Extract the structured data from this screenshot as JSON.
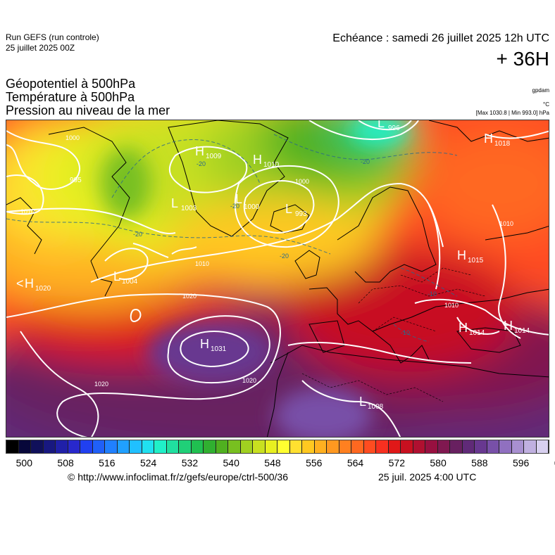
{
  "header": {
    "run_label": "Run GEFS (run controle)",
    "run_date": "25 juillet 2025 00Z",
    "echeance": "Echéance : samedi 26 juillet 2025 12h UTC",
    "lead_time": "+ 36H"
  },
  "layers": {
    "geopotential": "Géopotentiel à 500hPa",
    "temperature": "Température à 500hPa",
    "pressure": "Pression au niveau de la mer"
  },
  "units": {
    "geopotential": "gpdam",
    "temperature": "°C",
    "pressure": "[Max 1030.8 | Min 993.0] hPa"
  },
  "map": {
    "pressure_systems": [
      {
        "type": "H",
        "value": "1009",
        "region": "south-greenland"
      },
      {
        "type": "H",
        "value": "1010",
        "region": "greenland-sea"
      },
      {
        "type": "H",
        "value": "1018",
        "region": "barents-sea"
      },
      {
        "type": "L",
        "value": "1003",
        "region": "davis-strait"
      },
      {
        "type": "L",
        "value": "1000",
        "region": "north-iceland"
      },
      {
        "type": "L",
        "value": "993",
        "region": "iceland"
      },
      {
        "type": "L",
        "value": "996",
        "region": "spitsbergen"
      },
      {
        "type": "L",
        "value": "995",
        "region": "canada-north"
      },
      {
        "type": "H",
        "value": "1015",
        "region": "russia-west"
      },
      {
        "type": "H",
        "value": "1020",
        "region": "north-america-east"
      },
      {
        "type": "L",
        "value": "1004",
        "region": "newfoundland"
      },
      {
        "type": "H",
        "value": "1031",
        "region": "azores"
      },
      {
        "type": "H",
        "value": "1014",
        "region": "balkans"
      },
      {
        "type": "H",
        "value": "1014",
        "region": "black-sea"
      },
      {
        "type": "L",
        "value": "1008",
        "region": "sahara"
      }
    ],
    "isobar_labels": [
      "1000",
      "1010",
      "1020",
      "1020",
      "1020",
      "1000",
      "1010",
      "1010",
      "1010"
    ],
    "temperature_labels": [
      "-20",
      "-20",
      "-20",
      "-20",
      "-20",
      "-10",
      "-10"
    ]
  },
  "colorbar": {
    "colors": [
      "#000000",
      "#07073a",
      "#10105a",
      "#181880",
      "#2020a8",
      "#2828cc",
      "#2040f0",
      "#2060f8",
      "#2080ff",
      "#20a0ff",
      "#20c0ff",
      "#20e0f0",
      "#20f0c8",
      "#20e0a0",
      "#20d078",
      "#20c050",
      "#30b030",
      "#50b020",
      "#78c020",
      "#a0d020",
      "#c8e020",
      "#e8f020",
      "#ffff30",
      "#ffe030",
      "#ffc820",
      "#ffb020",
      "#ff9820",
      "#ff8020",
      "#ff6820",
      "#ff4c20",
      "#f83020",
      "#e01818",
      "#c81020",
      "#b01030",
      "#981040",
      "#801850",
      "#682060",
      "#602a78",
      "#683890",
      "#7850a8",
      "#9070c0",
      "#a890d0",
      "#c0b0e0",
      "#d8d0f0"
    ],
    "tick_labels": [
      "500",
      "508",
      "516",
      "524",
      "532",
      "540",
      "548",
      "556",
      "564",
      "572",
      "580",
      "588",
      "596",
      "604"
    ]
  },
  "footer": {
    "copyright": "© http://www.infoclimat.fr/z/gefs/europe/ctrl-500/36",
    "generated": "25 juil. 2025  4:00 UTC"
  }
}
